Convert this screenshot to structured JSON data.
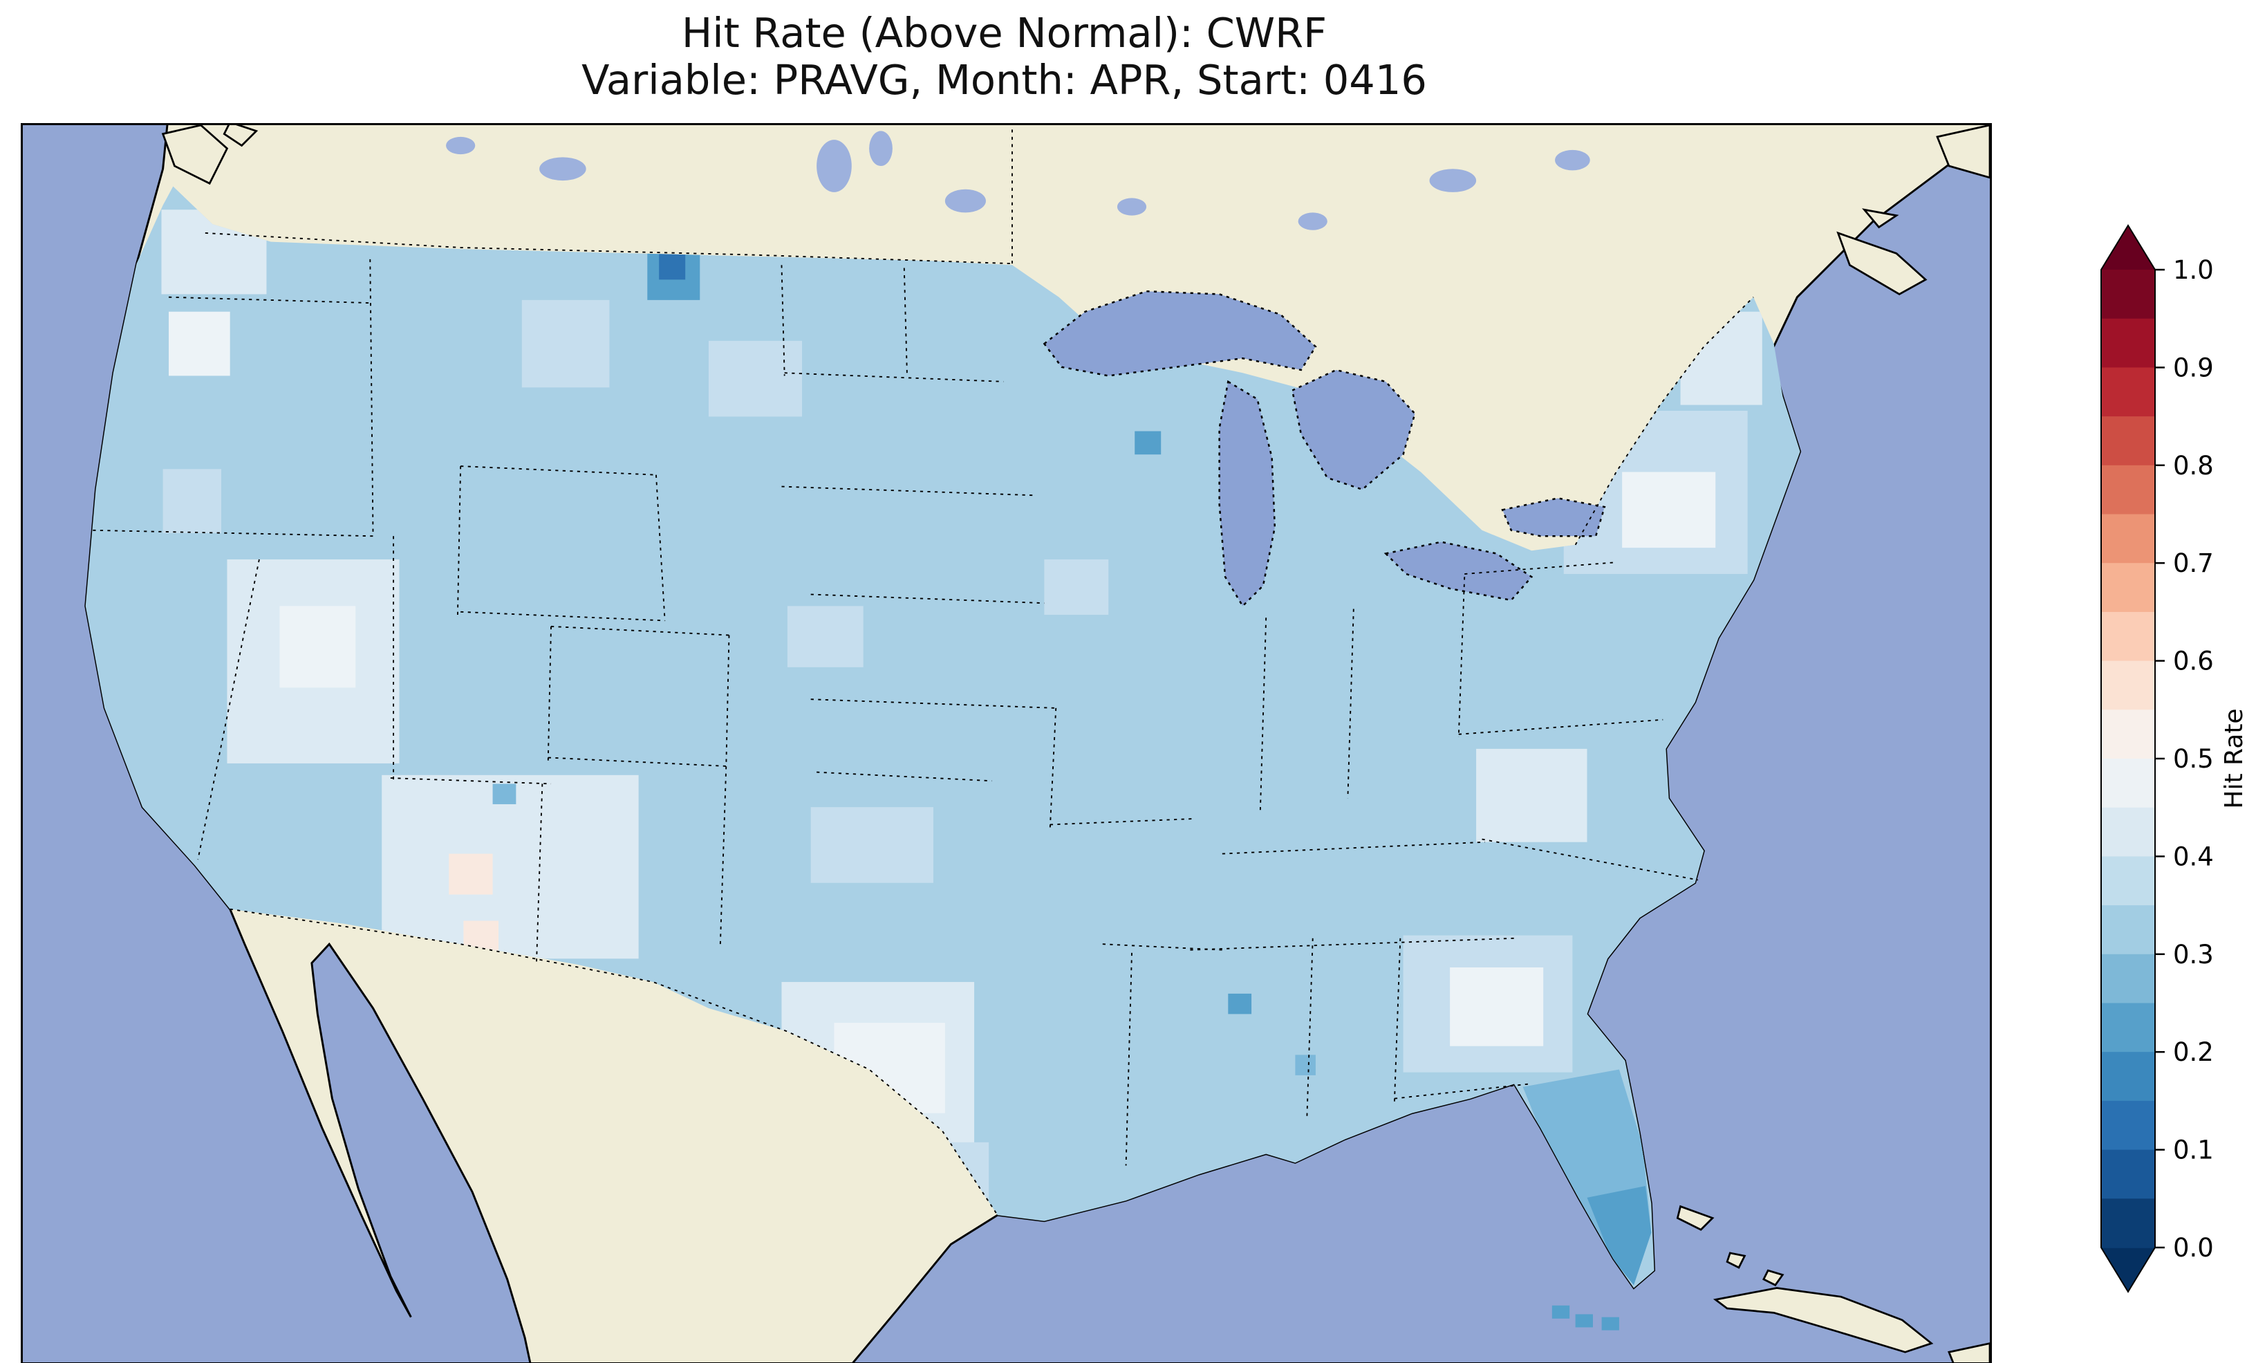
{
  "title": {
    "line1": "Hit Rate (Above Normal): CWRF",
    "line2": "Variable: PRAVG, Month: APR, Start: 0416"
  },
  "colorbar": {
    "label": "Hit Rate",
    "ticks": [
      "1.0",
      "0.9",
      "0.8",
      "0.7",
      "0.6",
      "0.5",
      "0.4",
      "0.3",
      "0.2",
      "0.1",
      "0.0"
    ],
    "band_colors_top_to_bottom": [
      "#7a0622",
      "#9f1228",
      "#bb2a33",
      "#cd4e44",
      "#dd715a",
      "#ec9475",
      "#f6b293",
      "#fbcdb6",
      "#fbe2d3",
      "#f8f0eb",
      "#edf2f5",
      "#dbe9f2",
      "#c1ddec",
      "#a2cde3",
      "#7eb8d7",
      "#57a0ca",
      "#3b88bd",
      "#2a71b2",
      "#1a5999",
      "#0c3e74"
    ],
    "over_color": "#67001f",
    "under_color": "#053061"
  },
  "map": {
    "colors": {
      "ocean": "#92a6d4",
      "land": "#f0edd8",
      "lake": "#8ba2d4",
      "lake2": "#9db1dd",
      "us_base": "#a9d0e5",
      "v40": "#c6deee",
      "v45": "#dceaf3",
      "v50": "#edf3f7",
      "p55": "#f9e9e0",
      "d30": "#7cb8da",
      "d25": "#55a0cb",
      "d20": "#2e74b3",
      "border": "#000000"
    }
  },
  "chart_data": {
    "type": "heatmap",
    "title": "Hit Rate (Above Normal): CWRF",
    "subtitle": "Variable: PRAVG, Month: APR, Start: 0416",
    "colorbar_label": "Hit Rate",
    "colorbar_ticks": [
      0.0,
      0.1,
      0.2,
      0.3,
      0.4,
      0.5,
      0.6,
      0.7,
      0.8,
      0.9,
      1.0
    ],
    "colormap": "RdBu_r, discrete bins of 0.05, extend both ends",
    "value_domain": [
      0.0,
      1.0
    ],
    "observed_range_on_map": [
      0.2,
      0.6
    ],
    "geography": "Contiguous United States gridded field; non-US land masked (beige); ocean and Great Lakes blue",
    "regions": [
      {
        "region": "Western Washington coast",
        "hit_rate": 0.45
      },
      {
        "region": "Pacific Northwest interior (WA/OR/ID)",
        "hit_rate": 0.4
      },
      {
        "region": "Nevada / Great Basin",
        "hit_rate": 0.5
      },
      {
        "region": "Arizona - New Mexico (Four Corners)",
        "hit_rate": 0.48
      },
      {
        "region": "Central Arizona / NM pink cells",
        "hit_rate": 0.55
      },
      {
        "region": "Rocky Mountains (MT/WY/CO)",
        "hit_rate": 0.4
      },
      {
        "region": "Northern Montana dark cell",
        "hit_rate": 0.2
      },
      {
        "region": "Great Plains (ND-KS)",
        "hit_rate": 0.4
      },
      {
        "region": "Central Texas",
        "hit_rate": 0.47
      },
      {
        "region": "South Texas",
        "hit_rate": 0.42
      },
      {
        "region": "Upper Midwest (MN/WI/MI)",
        "hit_rate": 0.38
      },
      {
        "region": "Wisconsin dark cell",
        "hit_rate": 0.25
      },
      {
        "region": "Ohio Valley / Midwest",
        "hit_rate": 0.4
      },
      {
        "region": "Northeast (NY / New England)",
        "hit_rate": 0.45
      },
      {
        "region": "Mid-Atlantic (VA)",
        "hit_rate": 0.45
      },
      {
        "region": "Southeast (GA/SC/AL)",
        "hit_rate": 0.47
      },
      {
        "region": "Mississippi / Alabama dark cells",
        "hit_rate": 0.25
      },
      {
        "region": "North Florida",
        "hit_rate": 0.3
      },
      {
        "region": "South Florida",
        "hit_rate": 0.25
      },
      {
        "region": "Gulf Coast",
        "hit_rate": 0.35
      }
    ]
  }
}
